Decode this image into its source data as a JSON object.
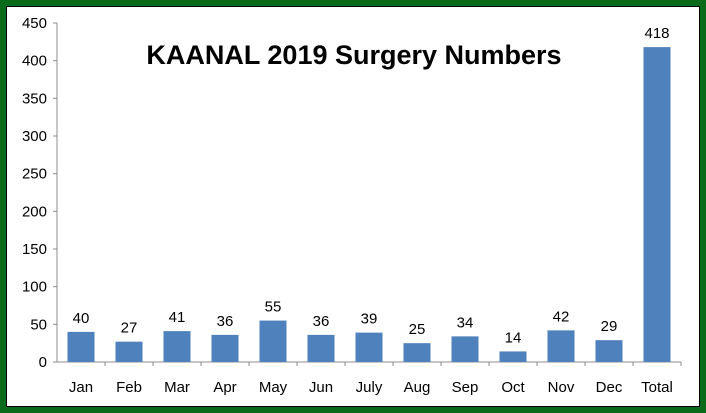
{
  "chart_data": {
    "type": "bar",
    "title": "KAANAL 2019 Surgery Numbers",
    "xlabel": "",
    "ylabel": "",
    "categories": [
      "Jan",
      "Feb",
      "Mar",
      "Apr",
      "May",
      "Jun",
      "July",
      "Aug",
      "Sep",
      "Oct",
      "Nov",
      "Dec",
      "Total"
    ],
    "values": [
      40,
      27,
      41,
      36,
      55,
      36,
      39,
      25,
      34,
      14,
      42,
      29,
      418
    ],
    "ylim": [
      0,
      450
    ],
    "yticks": [
      0,
      50,
      100,
      150,
      200,
      250,
      300,
      350,
      400,
      450
    ],
    "grid": false,
    "legend": "none",
    "bar_color": "#4f81bd",
    "frame_color": "#0a6b1a"
  }
}
